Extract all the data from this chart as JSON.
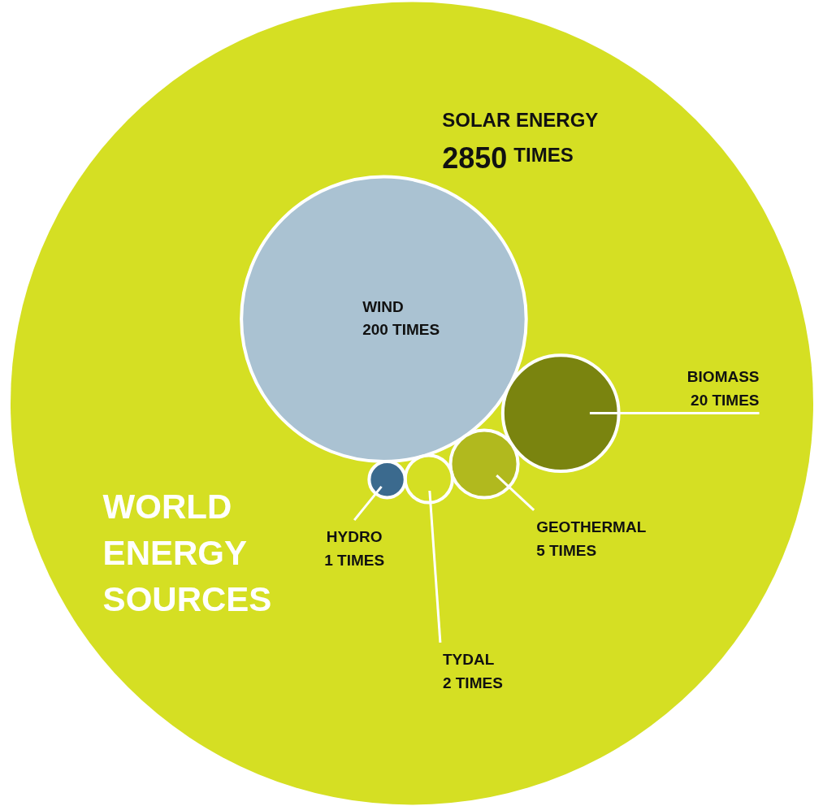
{
  "chart_data": {
    "type": "other",
    "title": "WORLD ENERGY SOURCES",
    "categories": [
      "SOLAR ENERGY",
      "WIND",
      "BIOMASS",
      "GEOTHERMAL",
      "TYDAL",
      "HYDRO"
    ],
    "values": [
      2850,
      200,
      20,
      5,
      2,
      1
    ],
    "value_labels": [
      "2850 TIMES",
      "200 TIMES",
      "20 TIMES",
      "5 TIMES",
      "2 TIMES",
      "1 TIMES"
    ],
    "colors": [
      "#d5df23",
      "#aac2d2",
      "#7a840f",
      "#b1b91e",
      "#d5df23",
      "#3b6a8e"
    ]
  }
}
